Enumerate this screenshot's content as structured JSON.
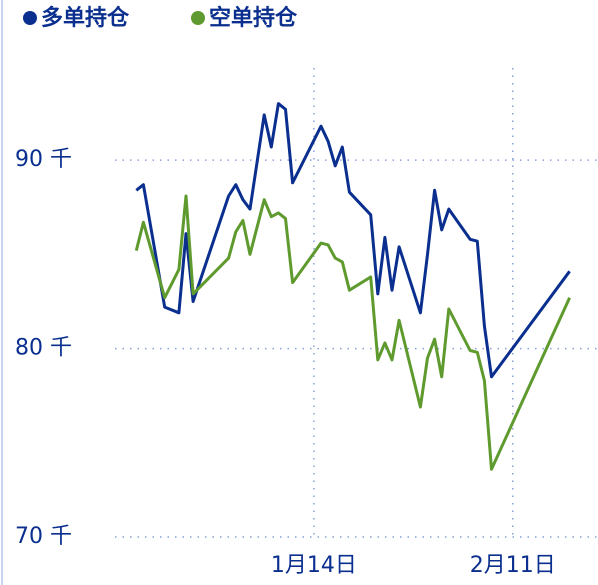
{
  "chart_data": {
    "type": "line",
    "x": [
      "12月20日",
      "12月21日",
      "12月24日",
      "12月26日",
      "12月27日",
      "12月28日",
      "1月2日",
      "1月3日",
      "1月4日",
      "1月5日",
      "1月7日",
      "1月8日",
      "1月9日",
      "1月10日",
      "1月11日",
      "1月15日",
      "1月16日",
      "1月17日",
      "1月18日",
      "1月19日",
      "1月22日",
      "1月23日",
      "1月24日",
      "1月25日",
      "1月26日",
      "1月29日",
      "1月30日",
      "1月31日",
      "2月1日",
      "2月2日",
      "2月5日",
      "2月6日",
      "2月7日",
      "2月8日",
      "2月19日"
    ],
    "series": [
      {
        "name": "多单持仓",
        "color": "#0a2f8f",
        "values": [
          88.4,
          88.7,
          82.2,
          81.9,
          86.1,
          82.5,
          88.1,
          88.7,
          87.9,
          87.4,
          92.4,
          90.7,
          93.0,
          92.7,
          88.8,
          91.8,
          91.0,
          89.7,
          90.7,
          88.3,
          87.1,
          82.9,
          85.9,
          83.1,
          85.4,
          81.9,
          85.0,
          88.4,
          86.3,
          87.4,
          85.8,
          85.7,
          81.2,
          78.5,
          84.1
        ]
      },
      {
        "name": "空单持仓",
        "color": "#5f9a2e",
        "values": [
          85.2,
          86.7,
          82.7,
          84.2,
          88.1,
          82.9,
          84.8,
          86.2,
          86.8,
          85.0,
          87.9,
          87.0,
          87.2,
          86.9,
          83.5,
          85.6,
          85.5,
          84.8,
          84.6,
          83.1,
          83.8,
          79.4,
          80.3,
          79.4,
          81.5,
          76.9,
          79.5,
          80.5,
          78.5,
          82.1,
          79.9,
          79.8,
          78.3,
          73.6,
          82.7
        ]
      }
    ],
    "xlim": [
      "12月17日",
      "2月23日"
    ],
    "xticks": [
      "1月14日",
      "2月11日"
    ],
    "ylim": [
      70,
      98.5
    ],
    "yticks": [
      {
        "value": 70,
        "label": "70 千"
      },
      {
        "value": 80,
        "label": "80 千"
      },
      {
        "value": 90,
        "label": "90 千"
      }
    ],
    "grid": true
  }
}
